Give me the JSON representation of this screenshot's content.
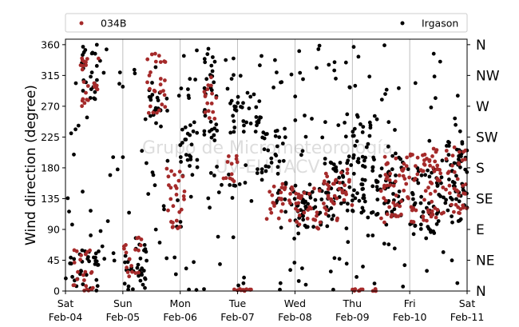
{
  "chart_data": {
    "type": "scatter",
    "ylabel": "Wind direction (degree)",
    "ylim": [
      0,
      368
    ],
    "yticks": [
      0,
      45,
      90,
      135,
      180,
      225,
      270,
      315,
      360
    ],
    "y_right_ticks": [
      {
        "value": 0,
        "label": "N"
      },
      {
        "value": 45,
        "label": "NE"
      },
      {
        "value": 90,
        "label": "E"
      },
      {
        "value": 135,
        "label": "SE"
      },
      {
        "value": 180,
        "label": "S"
      },
      {
        "value": 225,
        "label": "SW"
      },
      {
        "value": 270,
        "label": "W"
      },
      {
        "value": 315,
        "label": "NW"
      },
      {
        "value": 360,
        "label": "N"
      }
    ],
    "xlim": [
      "2021-02-04",
      "2021-02-11"
    ],
    "xticks": [
      {
        "day": "Sat",
        "date": "Feb-04"
      },
      {
        "day": "Sun",
        "date": "Feb-05"
      },
      {
        "day": "Mon",
        "date": "Feb-06"
      },
      {
        "day": "Tue",
        "date": "Feb-07"
      },
      {
        "day": "Wed",
        "date": "Feb-08"
      },
      {
        "day": "Thu",
        "date": "Feb-09"
      },
      {
        "day": "Fri",
        "date": "Feb-10"
      },
      {
        "day": "Sat",
        "date": "Feb-11"
      }
    ],
    "grid": "vertical",
    "legend": "top",
    "series": [
      {
        "name": "034B",
        "color": "#a52a2a",
        "clusters": [
          {
            "x": [
              "Feb-04 06:00",
              "Feb-04 14:00"
            ],
            "y": [
              270,
              350
            ]
          },
          {
            "x": [
              "Feb-04 02:00",
              "Feb-04 12:00"
            ],
            "y": [
              0,
              60
            ]
          },
          {
            "x": [
              "Feb-05 00:00",
              "Feb-05 08:00"
            ],
            "y": [
              20,
              80
            ]
          },
          {
            "x": [
              "Feb-05 10:00",
              "Feb-05 18:00"
            ],
            "y": [
              260,
              350
            ]
          },
          {
            "x": [
              "Feb-05 18:00",
              "Feb-06 02:00"
            ],
            "y": [
              90,
              180
            ]
          },
          {
            "x": [
              "Feb-06 10:00",
              "Feb-06 16:00"
            ],
            "y": [
              250,
              320
            ]
          },
          {
            "x": [
              "Feb-06 18:00",
              "Feb-07 00:00"
            ],
            "y": [
              150,
              200
            ]
          },
          {
            "x": [
              "Feb-07 12:00",
              "Feb-08 00:00"
            ],
            "y": [
              100,
              160
            ]
          },
          {
            "x": [
              "Feb-08 00:00",
              "Feb-08 18:00"
            ],
            "y": [
              90,
              150
            ]
          },
          {
            "x": [
              "Feb-08 12:00",
              "Feb-09 00:00"
            ],
            "y": [
              120,
              180
            ]
          },
          {
            "x": [
              "Feb-09 12:00",
              "Feb-10 12:00"
            ],
            "y": [
              100,
              200
            ]
          },
          {
            "x": [
              "Feb-10 08:00",
              "Feb-11 00:00"
            ],
            "y": [
              110,
              210
            ]
          },
          {
            "x": [
              "Feb-06 22:00",
              "Feb-07 06:00"
            ],
            "y": [
              0,
              3
            ]
          },
          {
            "x": [
              "Feb-09 00:00",
              "Feb-09 10:00"
            ],
            "y": [
              0,
              3
            ]
          }
        ]
      },
      {
        "name": "Irgason",
        "color": "#000000",
        "clusters": [
          {
            "x": [
              "Feb-04 00:00",
              "Feb-11 00:00"
            ],
            "y": [
              0,
              360
            ]
          },
          {
            "x": [
              "Feb-04 06:00",
              "Feb-04 14:00"
            ],
            "y": [
              280,
              360
            ]
          },
          {
            "x": [
              "Feb-04 00:00",
              "Feb-04 14:00"
            ],
            "y": [
              0,
              60
            ]
          },
          {
            "x": [
              "Feb-05 00:00",
              "Feb-05 10:00"
            ],
            "y": [
              0,
              80
            ]
          },
          {
            "x": [
              "Feb-06 00:00",
              "Feb-06 08:00"
            ],
            "y": [
              180,
              250
            ]
          },
          {
            "x": [
              "Feb-06 10:00",
              "Feb-06 16:00"
            ],
            "y": [
              220,
              350
            ]
          },
          {
            "x": [
              "Feb-06 20:00",
              "Feb-07 10:00"
            ],
            "y": [
              230,
              290
            ]
          },
          {
            "x": [
              "Feb-07 10:00",
              "Feb-07 20:00"
            ],
            "y": [
              170,
              240
            ]
          },
          {
            "x": [
              "Feb-07 16:00",
              "Feb-08 12:00"
            ],
            "y": [
              90,
              160
            ]
          },
          {
            "x": [
              "Feb-08 12:00",
              "Feb-09 06:00"
            ],
            "y": [
              110,
              200
            ]
          },
          {
            "x": [
              "Feb-09 00:00",
              "Feb-09 08:00"
            ],
            "y": [
              190,
              260
            ]
          },
          {
            "x": [
              "Feb-09 08:00",
              "Feb-09 22:00"
            ],
            "y": [
              110,
              200
            ]
          },
          {
            "x": [
              "Feb-10 00:00",
              "Feb-10 12:00"
            ],
            "y": [
              80,
              180
            ]
          },
          {
            "x": [
              "Feb-10 12:00",
              "Feb-11 00:00"
            ],
            "y": [
              100,
              230
            ]
          },
          {
            "x": [
              "Feb-05 10:00",
              "Feb-05 16:00"
            ],
            "y": [
              240,
              310
            ]
          }
        ]
      }
    ]
  },
  "watermark": {
    "line1": "Grupo de Micrometeorología",
    "line2": "UV-EUITACV"
  }
}
